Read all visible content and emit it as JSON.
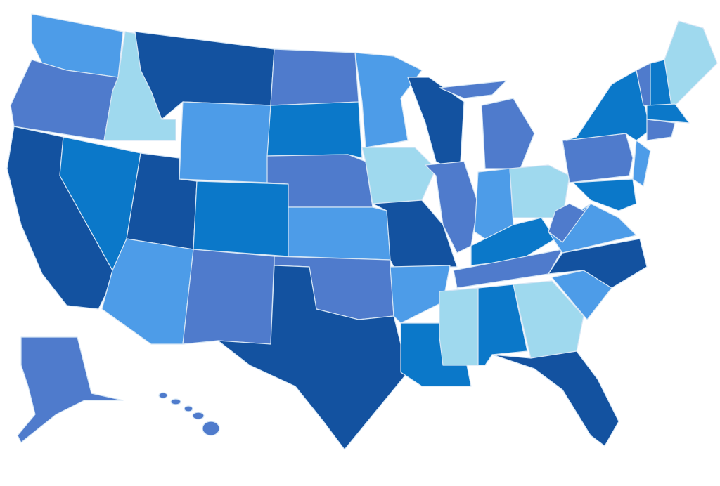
{
  "map": {
    "background": "#ffffff",
    "border_color": "#d6e6f5",
    "palette": {
      "dark": "#1352a0",
      "mid": "#0b78c9",
      "light": "#4d9ce8",
      "slate": "#4f7bcc",
      "pale": "#9fd9ee"
    },
    "state_fills": {
      "WA": "light",
      "OR": "slate",
      "CA": "dark",
      "ID": "pale",
      "NV": "mid",
      "MT": "dark",
      "WY": "light",
      "UT": "dark",
      "AZ": "light",
      "CO": "mid",
      "NM": "slate",
      "ND": "slate",
      "SD": "mid",
      "NE": "slate",
      "KS": "light",
      "OK": "slate",
      "TX": "dark",
      "MN": "light",
      "IA": "pale",
      "MO": "dark",
      "AR": "light",
      "LA": "mid",
      "WI": "dark",
      "IL": "slate",
      "MI": "slate",
      "IN": "light",
      "OH": "pale",
      "KY": "mid",
      "TN": "slate",
      "MS": "pale",
      "AL": "mid",
      "GA": "pale",
      "FL": "dark",
      "SC": "light",
      "NC": "dark",
      "VA": "light",
      "WV": "slate",
      "PA": "slate",
      "NY": "mid",
      "NJ": "light",
      "MD": "mid",
      "VT": "slate",
      "NH": "mid",
      "ME": "pale",
      "MA": "mid",
      "CT": "slate",
      "AK": "slate",
      "HI": "slate"
    }
  }
}
